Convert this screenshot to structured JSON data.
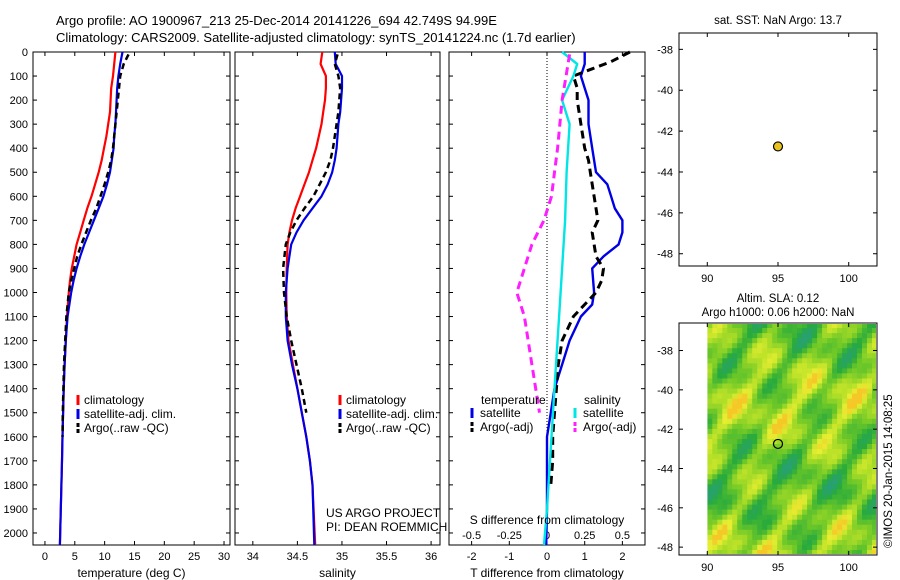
{
  "header": {
    "line1": "Argo profile: AO 1900967_213 25-Dec-2014 20141226_694 42.749S 94.99E",
    "line2": "Climatology: CARS2009. Satellite-adjusted climatology: synTS_20141224.nc (1.7d earlier)"
  },
  "colors": {
    "climatology": "#ff0000",
    "satellite": "#0000e6",
    "argo": "#000000",
    "salinity_satellite": "#00e5e5",
    "salinity_argo": "#ff1eff",
    "marker": "#e8c21e"
  },
  "credits": {
    "project": "US ARGO PROJECT",
    "pi": "PI: DEAN ROEMMICH",
    "imos": "©IMOS 20-Jan-2015 14:08:25"
  },
  "chart_data": [
    {
      "type": "line",
      "xlabel": "temperature (deg C)",
      "xlim": [
        -2,
        31
      ],
      "xticks": [
        "0",
        "5",
        "10",
        "15",
        "20",
        "25",
        "30"
      ],
      "ylim": [
        2050,
        0
      ],
      "yticks": [
        "0",
        "100",
        "200",
        "300",
        "400",
        "500",
        "600",
        "700",
        "800",
        "900",
        "1000",
        "1100",
        "1200",
        "1300",
        "1400",
        "1500",
        "1600",
        "1700",
        "1800",
        "1900",
        "2000"
      ],
      "legend": {
        "placement": "lower-right",
        "entries": [
          "climatology",
          "satellite-adj. clim.",
          "Argo(..raw -QC)"
        ]
      },
      "series": [
        {
          "name": "climatology",
          "style": "solid",
          "color": "#ff0000",
          "x": [
            11.8,
            11.6,
            11.4,
            11.1,
            11.0,
            10.9,
            10.6,
            10.3,
            9.9,
            9.5,
            9.0,
            8.4,
            7.8,
            7.1,
            6.5,
            5.9,
            5.3,
            4.9,
            4.5,
            4.2,
            4.0,
            3.7,
            3.5,
            3.3,
            3.15,
            3.05,
            2.95,
            2.85,
            2.75,
            2.65,
            2.5
          ],
          "y": [
            0,
            50,
            100,
            150,
            200,
            250,
            300,
            350,
            400,
            450,
            500,
            550,
            600,
            650,
            700,
            750,
            800,
            850,
            900,
            950,
            1000,
            1100,
            1200,
            1300,
            1400,
            1500,
            1600,
            1700,
            1800,
            1900,
            2050
          ]
        },
        {
          "name": "satellite-adj. clim.",
          "style": "solid",
          "color": "#0000e6",
          "x": [
            13.0,
            12.6,
            12.3,
            12.1,
            12.0,
            11.9,
            11.8,
            11.6,
            11.5,
            11.2,
            10.9,
            10.4,
            9.8,
            9.0,
            8.2,
            7.4,
            6.6,
            5.9,
            5.3,
            4.8,
            4.4,
            3.8,
            3.5,
            3.3,
            3.15,
            3.05,
            2.95,
            2.85,
            2.75,
            2.65,
            2.5
          ],
          "y": [
            0,
            50,
            100,
            150,
            200,
            250,
            300,
            350,
            400,
            450,
            500,
            550,
            600,
            650,
            700,
            750,
            800,
            850,
            900,
            950,
            1000,
            1100,
            1200,
            1300,
            1400,
            1500,
            1600,
            1700,
            1800,
            1900,
            2050
          ]
        },
        {
          "name": "Argo(..raw -QC)",
          "style": "dashed",
          "color": "#000000",
          "x": [
            14.0,
            13.2,
            12.6,
            12.4,
            12.2,
            12.0,
            11.8,
            11.6,
            11.4,
            11.1,
            10.6,
            10.0,
            9.3,
            8.6,
            7.7,
            6.9,
            6.1,
            5.4,
            4.9,
            4.4,
            4.0,
            3.6,
            3.4,
            3.2,
            3.1,
            3.0,
            2.95
          ],
          "y": [
            10,
            50,
            100,
            150,
            200,
            250,
            300,
            350,
            400,
            450,
            500,
            550,
            600,
            650,
            700,
            750,
            800,
            850,
            900,
            950,
            1000,
            1100,
            1200,
            1300,
            1400,
            1500,
            1600
          ]
        }
      ]
    },
    {
      "type": "line",
      "xlabel": "salinity",
      "xlim": [
        33.8,
        36.1
      ],
      "xticks": [
        "34",
        "34.5",
        "35",
        "35.5",
        "36"
      ],
      "ylim": [
        2050,
        0
      ],
      "legend": {
        "placement": "lower-right",
        "entries": [
          "climatology",
          "satellite-adj. clim.",
          "Argo(..raw -QC)"
        ]
      },
      "series": [
        {
          "name": "climatology",
          "style": "solid",
          "color": "#ff0000",
          "x": [
            34.78,
            34.76,
            34.82,
            34.82,
            34.81,
            34.79,
            34.77,
            34.74,
            34.71,
            34.67,
            34.63,
            34.58,
            34.53,
            34.48,
            34.44,
            34.41,
            34.39,
            34.38,
            34.375,
            34.38,
            34.4,
            34.45,
            34.5,
            34.55,
            34.6,
            34.64,
            34.67,
            34.7
          ],
          "y": [
            0,
            50,
            100,
            150,
            200,
            250,
            300,
            350,
            400,
            450,
            500,
            550,
            600,
            650,
            700,
            750,
            800,
            900,
            1000,
            1100,
            1200,
            1300,
            1400,
            1500,
            1600,
            1700,
            1800,
            2050
          ]
        },
        {
          "name": "satellite-adj. clim.",
          "style": "solid",
          "color": "#0000e6",
          "x": [
            34.92,
            34.93,
            35.0,
            35.0,
            34.99,
            34.98,
            34.96,
            34.95,
            34.94,
            34.92,
            34.89,
            34.84,
            34.77,
            34.67,
            34.57,
            34.49,
            34.43,
            34.39,
            34.37,
            34.37,
            34.39,
            34.44,
            34.5,
            34.55,
            34.6,
            34.64,
            34.67,
            34.69
          ],
          "y": [
            0,
            50,
            100,
            150,
            200,
            250,
            300,
            350,
            400,
            450,
            500,
            550,
            600,
            650,
            700,
            750,
            800,
            900,
            1000,
            1100,
            1200,
            1300,
            1400,
            1500,
            1600,
            1700,
            1800,
            2050
          ]
        },
        {
          "name": "Argo(..raw -QC)",
          "style": "dashed",
          "color": "#000000",
          "x": [
            34.95,
            34.92,
            34.96,
            34.98,
            34.97,
            34.96,
            34.94,
            34.92,
            34.9,
            34.87,
            34.82,
            34.75,
            34.68,
            34.58,
            34.49,
            34.42,
            34.37,
            34.34,
            34.35,
            34.38,
            34.43,
            34.49,
            34.55,
            34.6
          ],
          "y": [
            10,
            50,
            100,
            150,
            200,
            250,
            300,
            350,
            400,
            450,
            500,
            550,
            600,
            650,
            700,
            750,
            800,
            900,
            1000,
            1100,
            1200,
            1300,
            1400,
            1500
          ]
        }
      ]
    },
    {
      "type": "line",
      "xlabel": "T difference from climatology",
      "xlabel2": "S difference from climatology",
      "xlim": [
        -2.6,
        2.6
      ],
      "xticks": [
        "-2",
        "-1",
        "0",
        "1",
        "2"
      ],
      "xticks2": [
        "-0.5",
        "-0.25",
        "0",
        "0.25",
        "0.5"
      ],
      "ylim": [
        2050,
        0
      ],
      "legend": {
        "placement": "lower-left",
        "headers": [
          "temperature",
          "salinity"
        ],
        "entries": [
          "satellite",
          "Argo(-adj)",
          "satellite",
          "Argo(-adj)"
        ]
      },
      "series": [
        {
          "name": "temperature satellite",
          "style": "solid",
          "color": "#0000e6",
          "x": [
            1.0,
            1.0,
            0.9,
            1.0,
            1.1,
            1.1,
            1.2,
            1.3,
            1.6,
            1.7,
            1.8,
            2.0,
            2.0,
            1.9,
            1.5,
            1.2,
            1.25,
            1.2,
            0.9,
            0.6,
            0.4,
            0.2,
            0.1,
            0.0,
            0.0,
            0.0,
            0.0,
            -0.02
          ],
          "y": [
            0,
            50,
            100,
            150,
            200,
            300,
            400,
            500,
            550,
            600,
            650,
            700,
            750,
            800,
            850,
            900,
            1000,
            1050,
            1100,
            1200,
            1300,
            1400,
            1500,
            1600,
            1700,
            1800,
            1900,
            2050
          ]
        },
        {
          "name": "temperature Argo(-adj)",
          "style": "dashed",
          "color": "#000000",
          "x": [
            2.2,
            1.7,
            1.2,
            0.7,
            0.8,
            0.8,
            0.9,
            1.0,
            1.1,
            1.15,
            1.25,
            1.35,
            1.2,
            1.25,
            1.3,
            1.5,
            1.45,
            1.3,
            1.0,
            0.7,
            0.4,
            0.3,
            0.25,
            0.2,
            0.15,
            0.15,
            0.1
          ],
          "y": [
            0,
            40,
            70,
            100,
            150,
            200,
            300,
            400,
            450,
            500,
            600,
            700,
            750,
            800,
            850,
            900,
            950,
            1000,
            1050,
            1100,
            1200,
            1300,
            1400,
            1500,
            1600,
            1700,
            1800
          ]
        },
        {
          "name": "salinity satellite",
          "style": "solid",
          "color": "#00e5e5",
          "x": [
            0.1,
            0.2,
            0.175,
            0.1,
            0.15,
            0.14,
            0.13,
            0.12,
            0.1,
            0.08,
            0.06,
            0.04,
            0.02,
            0.0,
            -0.02
          ],
          "y": [
            0,
            50,
            100,
            200,
            300,
            400,
            500,
            700,
            900,
            1100,
            1300,
            1500,
            1700,
            1900,
            2050
          ]
        },
        {
          "name": "salinity Argo(-adj)",
          "style": "dashed",
          "color": "#ff1eff",
          "x": [
            0.15,
            0.1,
            0.07,
            0.05,
            0.03,
            -0.02,
            -0.1,
            -0.15,
            -0.2,
            -0.15,
            -0.1,
            -0.05
          ],
          "y": [
            10,
            200,
            400,
            500,
            600,
            700,
            800,
            900,
            1000,
            1100,
            1300,
            1500
          ]
        }
      ]
    },
    {
      "type": "scatter",
      "title": "sat. SST: NaN Argo: 13.7",
      "xlim": [
        88,
        102
      ],
      "ylim": [
        -48.6,
        -37.2
      ],
      "xticks": [
        "90",
        "95",
        "100"
      ],
      "yticks": [
        "-38",
        "-40",
        "-42",
        "-44",
        "-46",
        "-48"
      ],
      "points": [
        {
          "x": 95.0,
          "y": -42.75
        }
      ]
    },
    {
      "type": "heatmap",
      "title": "Altim. SLA: 0.12",
      "subtitle": "Argo h1000: 0.06 h2000: NaN",
      "xlim": [
        88,
        102
      ],
      "ylim": [
        -48.4,
        -36.6
      ],
      "xticks": [
        "90",
        "95",
        "100"
      ],
      "yticks": [
        "-38",
        "-40",
        "-42",
        "-44",
        "-46",
        "-48"
      ],
      "points": [
        {
          "x": 95.0,
          "y": -42.75
        }
      ]
    }
  ]
}
